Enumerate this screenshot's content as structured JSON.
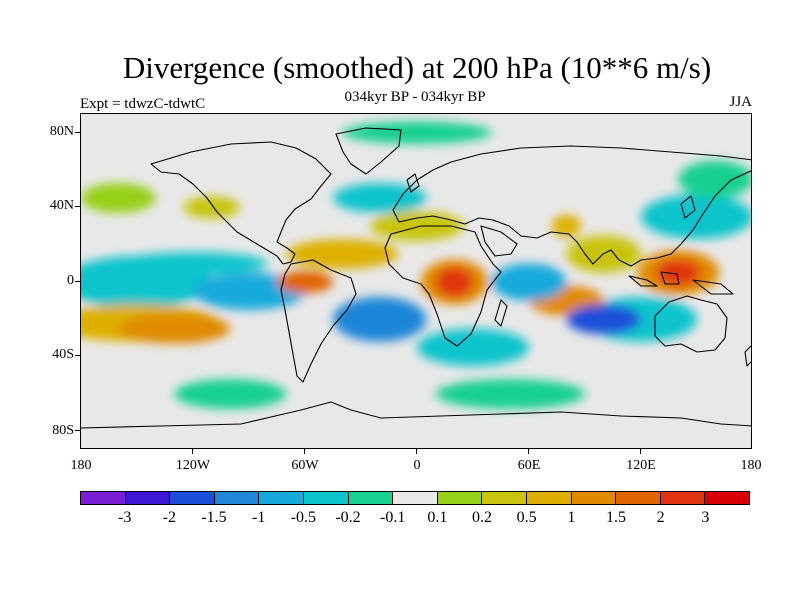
{
  "title": "Divergence (smoothed) at 200 hPa (10**6 m/s)",
  "subtitle": "034kyr BP - 034kyr BP",
  "experiment": "Expt = tdwzC-tdwtC",
  "season": "JJA",
  "lat_labels": [
    "80N",
    "40N",
    "0",
    "40S",
    "80S"
  ],
  "lon_labels": [
    "180",
    "120W",
    "60W",
    "0",
    "60E",
    "120E",
    "180"
  ],
  "colors": {
    "background": "#e8e8e8",
    "coast": "#000000",
    "levels": [
      "#7a1fd6",
      "#3c18d4",
      "#1a4fd8",
      "#1f86d8",
      "#16a9dc",
      "#0cc4cc",
      "#18d090",
      "#e8e8e8",
      "#96d018",
      "#c8c410",
      "#ddb000",
      "#e08a00",
      "#e06400",
      "#e03410",
      "#d80000"
    ]
  },
  "colorbar_labels": [
    "-3",
    "-2",
    "-1.5",
    "-1",
    "-0.5",
    "-0.2",
    "-0.1",
    "0.1",
    "0.2",
    "0.5",
    "1",
    "1.5",
    "2",
    "3"
  ],
  "map_data": {
    "lon_range": [
      -180,
      180
    ],
    "lat_range": [
      -90,
      90
    ],
    "blobs": [
      {
        "lon": 80,
        "lat": 30,
        "rx": 8,
        "ry": 6,
        "level": 10
      },
      {
        "lon": 20,
        "lat": 0,
        "rx": 18,
        "ry": 12,
        "level": 11
      },
      {
        "lon": 20,
        "lat": 0,
        "rx": 10,
        "ry": 8,
        "level": 13
      },
      {
        "lon": 140,
        "lat": 5,
        "rx": 22,
        "ry": 12,
        "level": 11
      },
      {
        "lon": 140,
        "lat": 5,
        "rx": 12,
        "ry": 7,
        "level": 13
      },
      {
        "lon": -130,
        "lat": -25,
        "rx": 30,
        "ry": 8,
        "level": 11
      },
      {
        "lon": -110,
        "lat": 40,
        "rx": 15,
        "ry": 6,
        "level": 9
      },
      {
        "lon": -20,
        "lat": -20,
        "rx": 25,
        "ry": 12,
        "level": 3
      },
      {
        "lon": -60,
        "lat": 0,
        "rx": 15,
        "ry": 6,
        "level": 12
      },
      {
        "lon": 60,
        "lat": 0,
        "rx": 20,
        "ry": 10,
        "level": 4
      },
      {
        "lon": 100,
        "lat": -20,
        "rx": 20,
        "ry": 8,
        "level": 2
      }
    ]
  }
}
